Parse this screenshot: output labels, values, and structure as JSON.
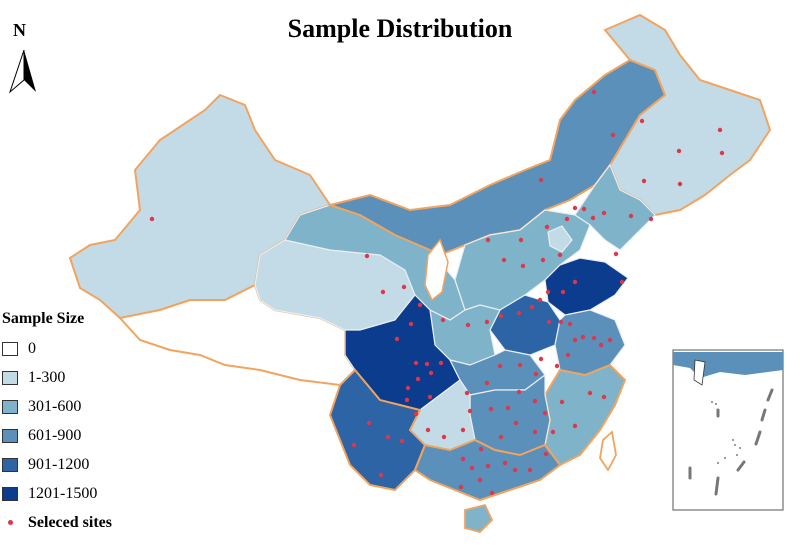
{
  "title": "Sample Distribution",
  "north_label": "N",
  "legend": {
    "title": "Sample Size",
    "classes": [
      {
        "label": "0",
        "color": "#ffffff"
      },
      {
        "label": "1-300",
        "color": "#c2dbe7"
      },
      {
        "label": "301-600",
        "color": "#7fb3c9"
      },
      {
        "label": "601-900",
        "color": "#5a90b9"
      },
      {
        "label": "901-1200",
        "color": "#2c64a5"
      },
      {
        "label": "1201-1500",
        "color": "#0b3c8d"
      }
    ],
    "sites_label": "Seleced sites",
    "sites_color": "#e0354a"
  },
  "colors": {
    "border": "#f2a45f",
    "province_line": "#e9eef3",
    "inset_frame": "#555555"
  }
}
